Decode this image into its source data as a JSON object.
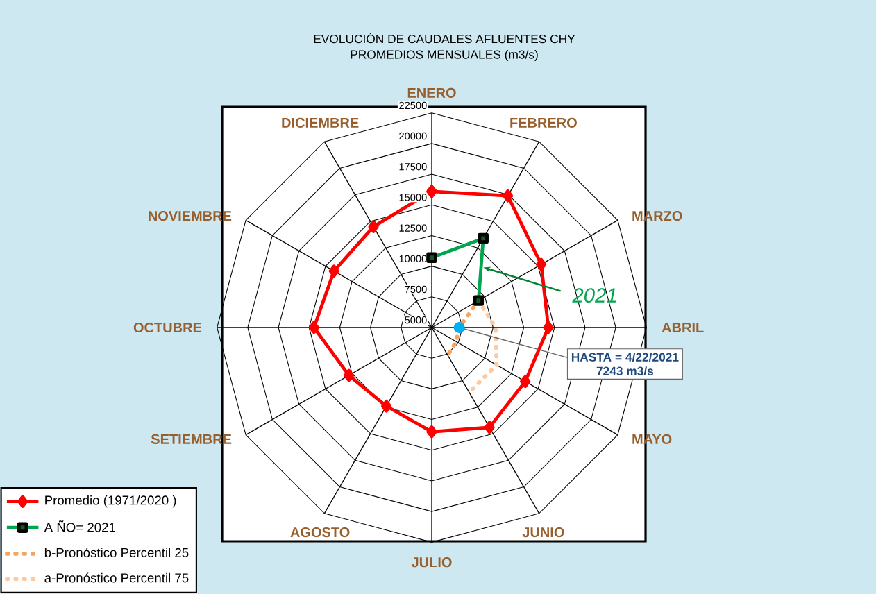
{
  "chart_data": {
    "type": "radar",
    "title": "EVOLUCIÓN DE CAUDALES AFLUENTES CHY",
    "subtitle": "PROMEDIOS MENSUALES (m3/s)",
    "categories": [
      "ENERO",
      "FEBRERO",
      "MARZO",
      "ABRIL",
      "MAYO",
      "JUNIO",
      "JULIO",
      "AGOSTO",
      "SETIEMBRE",
      "OCTUBRE",
      "NOVIEMBRE",
      "DICIEMBRE"
    ],
    "ylim": [
      5000,
      22500
    ],
    "yticks": [
      5000,
      7500,
      10000,
      12500,
      15000,
      17500,
      20000,
      22500
    ],
    "grid": true,
    "legend": "bottom left",
    "series": [
      {
        "name": "Promedio (1971/2020 )",
        "color": "#ff0000",
        "marker": "diamond",
        "line_style": "solid",
        "values": [
          16100,
          17400,
          15300,
          14500,
          13800,
          14400,
          13500,
          12400,
          12800,
          14600,
          14200,
          14500
        ]
      },
      {
        "name": "A ÑO= 2021",
        "color": "#00a550",
        "marker": "square",
        "line_style": "solid",
        "values": [
          10700,
          13400,
          9400,
          null,
          null,
          null,
          null,
          null,
          null,
          null,
          null,
          null
        ]
      },
      {
        "name": "b-Pronóstico Percentil 25",
        "color": "#f4a460",
        "marker": "none",
        "line_style": "dotted",
        "values": [
          null,
          null,
          9400,
          7243,
          7300,
          7600,
          null,
          null,
          null,
          null,
          null,
          null
        ]
      },
      {
        "name": "a-Pronóstico Percentil 75",
        "color": "#fcc9a0",
        "marker": "none",
        "line_style": "dotted",
        "values": [
          null,
          null,
          9400,
          10200,
          11100,
          11100,
          null,
          null,
          null,
          null,
          null,
          null
        ]
      }
    ],
    "annotations": [
      "2021",
      {
        "text": "HASTA = 4/22/2021",
        "x": "ABRIL"
      },
      "7243 m3/s"
    ]
  }
}
